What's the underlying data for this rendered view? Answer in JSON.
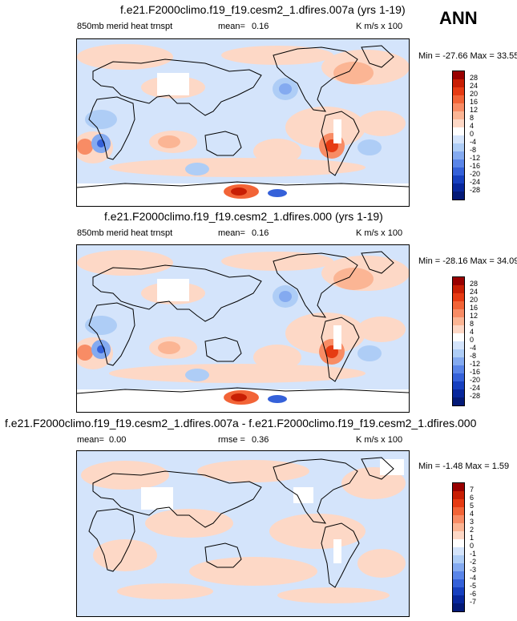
{
  "season": "ANN",
  "panels": [
    {
      "title": "f.e21.F2000climo.f19_f19.cesm2_1.dfires.007a (yrs 1-19)",
      "variable": "850mb merid heat trnspt",
      "stat_label": "mean=",
      "stat_value": "0.16",
      "units": "K m/s x 100",
      "minmax": "Min = -27.66 Max = 33.55",
      "levels": [
        "28",
        "24",
        "20",
        "16",
        "12",
        "8",
        "4",
        "0",
        "-4",
        "-8",
        "-12",
        "-16",
        "-20",
        "-24",
        "-28"
      ],
      "colors": [
        "#990000",
        "#c81e04",
        "#e63b13",
        "#f26437",
        "#f88c65",
        "#fbb594",
        "#fdd8c6",
        "#ffffff",
        "#d4e4fb",
        "#aecdf6",
        "#84aaf0",
        "#5a85e8",
        "#3561d9",
        "#1740bf",
        "#08279c",
        "#041a77"
      ]
    },
    {
      "title": "f.e21.F2000climo.f19_f19.cesm2_1.dfires.000 (yrs 1-19)",
      "variable": "850mb merid heat trnspt",
      "stat_label": "mean=",
      "stat_value": "0.16",
      "units": "K m/s x 100",
      "minmax": "Min = -28.16 Max = 34.09",
      "levels": [
        "28",
        "24",
        "20",
        "16",
        "12",
        "8",
        "4",
        "0",
        "-4",
        "-8",
        "-12",
        "-16",
        "-20",
        "-24",
        "-28"
      ],
      "colors": [
        "#990000",
        "#c81e04",
        "#e63b13",
        "#f26437",
        "#f88c65",
        "#fbb594",
        "#fdd8c6",
        "#ffffff",
        "#d4e4fb",
        "#aecdf6",
        "#84aaf0",
        "#5a85e8",
        "#3561d9",
        "#1740bf",
        "#08279c",
        "#041a77"
      ]
    },
    {
      "title": "f.e21.F2000climo.f19_f19.cesm2_1.dfires.007a - f.e21.F2000climo.f19_f19.cesm2_1.dfires.000",
      "mean_label": "mean=",
      "mean_value": "0.00",
      "stat_label": "rmse =",
      "stat_value": "0.36",
      "units": "K m/s x 100",
      "minmax": "Min = -1.48 Max = 1.59",
      "levels": [
        "7",
        "6",
        "5",
        "4",
        "3",
        "2",
        "1",
        "0",
        "-1",
        "-2",
        "-3",
        "-4",
        "-5",
        "-6",
        "-7"
      ],
      "colors": [
        "#990000",
        "#c81e04",
        "#e63b13",
        "#f26437",
        "#f88c65",
        "#fbb594",
        "#fdd8c6",
        "#ffffff",
        "#d4e4fb",
        "#aecdf6",
        "#84aaf0",
        "#5a85e8",
        "#3561d9",
        "#1740bf",
        "#08279c",
        "#041a77"
      ]
    }
  ]
}
